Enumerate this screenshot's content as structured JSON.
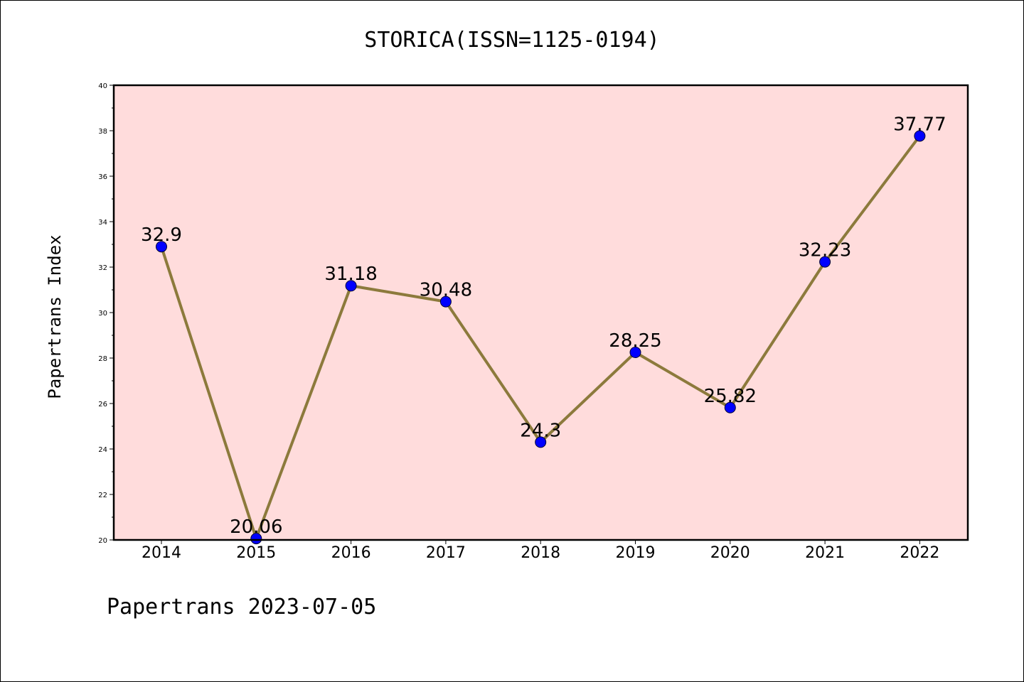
{
  "chart_data": {
    "type": "line",
    "title": "STORICA(ISSN=1125-0194)",
    "xlabel": "",
    "ylabel": "Papertrans Index",
    "x": [
      "2014",
      "2015",
      "2016",
      "2017",
      "2018",
      "2019",
      "2020",
      "2021",
      "2022"
    ],
    "series": [
      {
        "values": [
          32.9,
          20.06,
          31.18,
          30.48,
          24.3,
          28.25,
          25.82,
          32.23,
          37.77
        ],
        "labels": [
          "32.9",
          "20.06",
          "31.18",
          "30.48",
          "24.3",
          "28.25",
          "25.82",
          "32.23",
          "37.77"
        ]
      }
    ],
    "ylim": [
      20,
      40
    ],
    "yticks": [
      20,
      22,
      24,
      26,
      28,
      30,
      32,
      34,
      36,
      38,
      40
    ],
    "grid": false,
    "colors": {
      "plot_background": "#ffdcdc",
      "line": "#8c7a3c",
      "marker": "#0000ff"
    }
  },
  "footer": {
    "text": "Papertrans 2023-07-05"
  }
}
